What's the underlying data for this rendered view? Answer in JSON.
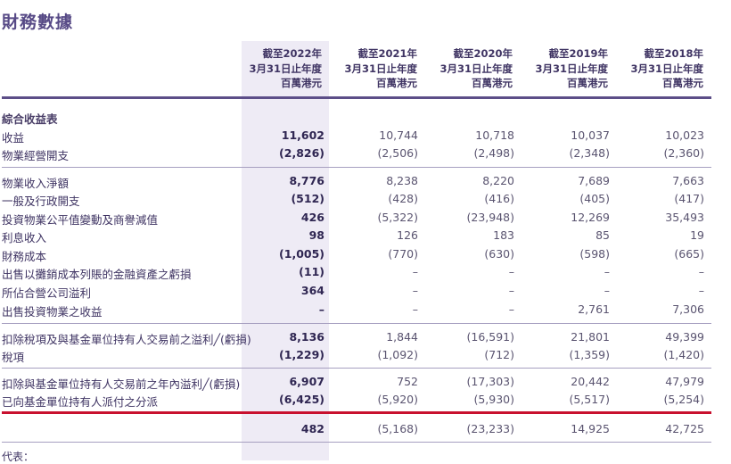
{
  "title": "財務數據",
  "columns": [
    {
      "line1": "截至2022年",
      "line2": "3月31日止年度",
      "line3": "百萬港元"
    },
    {
      "line1": "截至2021年",
      "line2": "3月31日止年度",
      "line3": "百萬港元"
    },
    {
      "line1": "截至2020年",
      "line2": "3月31日止年度",
      "line3": "百萬港元"
    },
    {
      "line1": "截至2019年",
      "line2": "3月31日止年度",
      "line3": "百萬港元"
    },
    {
      "line1": "截至2018年",
      "line2": "3月31日止年度",
      "line3": "百萬港元"
    }
  ],
  "section_title": "綜合收益表",
  "rows": [
    {
      "label": "收益",
      "values": [
        "11,602",
        "10,744",
        "10,718",
        "10,037",
        "10,023"
      ]
    },
    {
      "label": "物業經營開支",
      "values": [
        "(2,826)",
        "(2,506)",
        "(2,498)",
        "(2,348)",
        "(2,360)"
      ]
    },
    {
      "label": "物業收入淨額",
      "values": [
        "8,776",
        "8,238",
        "8,220",
        "7,689",
        "7,663"
      ]
    },
    {
      "label": "一般及行政開支",
      "values": [
        "(512)",
        "(428)",
        "(416)",
        "(405)",
        "(417)"
      ]
    },
    {
      "label": "投資物業公平值變動及商譽減值",
      "values": [
        "426",
        "(5,322)",
        "(23,948)",
        "12,269",
        "35,493"
      ]
    },
    {
      "label": "利息收入",
      "values": [
        "98",
        "126",
        "183",
        "85",
        "19"
      ]
    },
    {
      "label": "財務成本",
      "values": [
        "(1,005)",
        "(770)",
        "(630)",
        "(598)",
        "(665)"
      ]
    },
    {
      "label": "出售以攤銷成本列賬的金融資產之虧損",
      "values": [
        "(11)",
        "–",
        "–",
        "–",
        "–"
      ]
    },
    {
      "label": "所佔合營公司溢利",
      "values": [
        "364",
        "–",
        "–",
        "–",
        "–"
      ]
    },
    {
      "label": "出售投資物業之收益",
      "values": [
        "–",
        "–",
        "–",
        "2,761",
        "7,306"
      ]
    },
    {
      "label": "扣除稅項及與基金單位持有人交易前之溢利╱(虧損)",
      "values": [
        "8,136",
        "1,844",
        "(16,591)",
        "21,801",
        "49,399"
      ]
    },
    {
      "label": "稅項",
      "values": [
        "(1,229)",
        "(1,092)",
        "(712)",
        "(1,359)",
        "(1,420)"
      ]
    },
    {
      "label": "扣除與基金單位持有人交易前之年內溢利╱(虧損)",
      "values": [
        "6,907",
        "752",
        "(17,303)",
        "20,442",
        "47,979"
      ]
    },
    {
      "label": "已向基金單位持有人派付之分派",
      "values": [
        "(6,425)",
        "(5,920)",
        "(5,930)",
        "(5,517)",
        "(5,254)"
      ]
    },
    {
      "label": "",
      "values": [
        "482",
        "(5,168)",
        "(23,233)",
        "14,925",
        "42,725"
      ]
    }
  ],
  "footnote": "代表："
}
